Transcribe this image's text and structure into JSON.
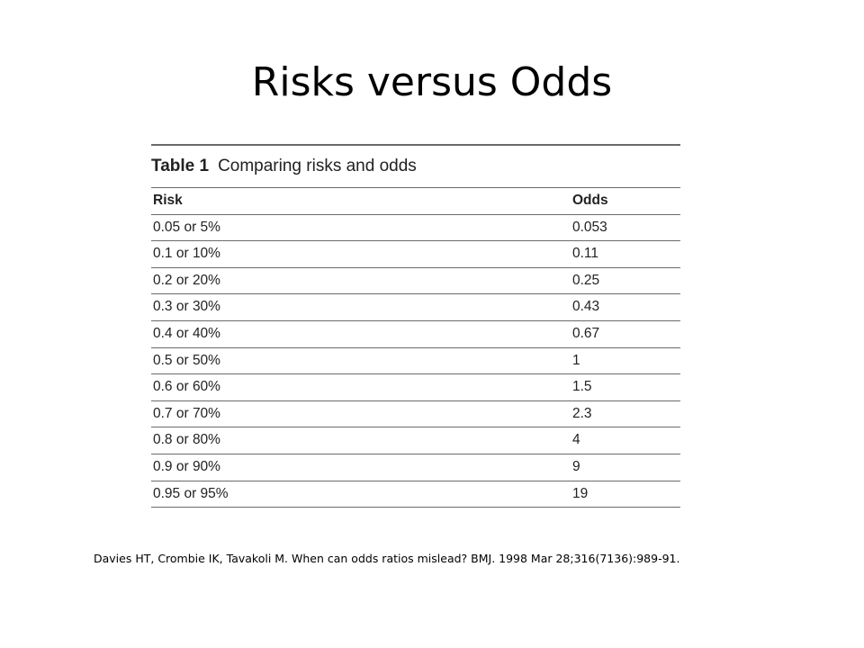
{
  "slide": {
    "title": "Risks versus Odds",
    "citation": "Davies HT, Crombie IK, Tavakoli M. When can odds ratios mislead? BMJ. 1998 Mar 28;316(7136):989-91."
  },
  "table": {
    "number": "Table 1",
    "caption": "Comparing risks and odds",
    "headers": [
      "Risk",
      "Odds"
    ],
    "rows": [
      [
        "0.05 or 5%",
        "0.053"
      ],
      [
        "0.1 or 10%",
        "0.11"
      ],
      [
        "0.2 or 20%",
        "0.25"
      ],
      [
        "0.3 or 30%",
        "0.43"
      ],
      [
        "0.4 or 40%",
        "0.67"
      ],
      [
        "0.5 or 50%",
        "1"
      ],
      [
        "0.6 or 60%",
        "1.5"
      ],
      [
        "0.7 or 70%",
        "2.3"
      ],
      [
        "0.8 or 80%",
        "4"
      ],
      [
        "0.9 or 90%",
        "9"
      ],
      [
        "0.95 or 95%",
        "19"
      ]
    ]
  }
}
